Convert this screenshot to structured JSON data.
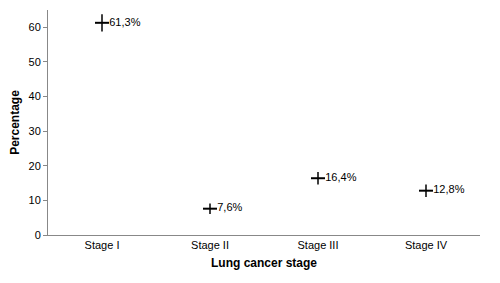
{
  "chart_data": {
    "type": "scatter",
    "x_label": "Lung cancer stage",
    "y_label": "Percentage",
    "categories": [
      "Stage I",
      "Stage II",
      "Stage III",
      "Stage IV"
    ],
    "values": [
      61.3,
      7.6,
      16.4,
      12.8
    ],
    "value_labels": [
      "61,3%",
      "7,6%",
      "16,4%",
      "12,8%"
    ],
    "errors": [
      2.5,
      1.5,
      1.8,
      1.8
    ],
    "color": "#000000",
    "marker": "line-ew",
    "data_labels": true,
    "grid": false,
    "ylim": [
      0,
      65
    ],
    "yticks": [
      0,
      10,
      20,
      30,
      40,
      50,
      60
    ]
  }
}
